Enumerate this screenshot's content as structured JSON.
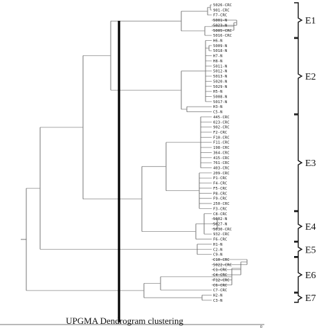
{
  "leaves": [
    "5026-CRC",
    "901-CRC",
    "F7-CRC",
    "5001-N",
    "5023-N",
    "5005-CRC",
    "5016-CRC",
    "H6-N",
    "5009-N",
    "5018-N",
    "H7-N",
    "H8-N",
    "5011-N",
    "5012-N",
    "5013-N",
    "5020-N",
    "5029-N",
    "H5-N",
    "5008-N",
    "5017-N",
    "H3-N",
    "C5-N",
    "445-CRC",
    "023-CRC",
    "902-CRC",
    "F2-CRC",
    "F10-CRC",
    "F11-CRC",
    "198-CRC",
    "364-CRC",
    "415-CRC",
    "761-CRC",
    "403-CRC",
    "209-CRC",
    "P1-CRC",
    "F4-CRC",
    "F5-CRC",
    "P8-CRC",
    "F9-CRC",
    "250-CRC",
    "F3-CRC",
    "C8-CRC",
    "5002-N",
    "5027-N",
    "5030-CRC",
    "932-CRC",
    "F6-CRC",
    "H1-N",
    "C2-N",
    "C9-N",
    "C10-CRC",
    "5022-CRC",
    "C1-CRC",
    "C4-CRC",
    "F12-CRC",
    "C6-CRC",
    "C7-CRC",
    "H2-N",
    "C3-N"
  ],
  "groups": [
    {
      "label": "E1",
      "first": 0,
      "last": 6
    },
    {
      "label": "E2",
      "first": 7,
      "last": 21
    },
    {
      "label": "E3",
      "first": 22,
      "last": 40
    },
    {
      "label": "E4",
      "first": 41,
      "last": 46
    },
    {
      "label": "E5",
      "first": 47,
      "last": 49
    },
    {
      "label": "E6",
      "first": 50,
      "last": 56
    },
    {
      "label": "E7",
      "first": 57,
      "last": 58
    }
  ],
  "caption": "UPGMA Dendrogram clustering",
  "axis_tick": "0"
}
